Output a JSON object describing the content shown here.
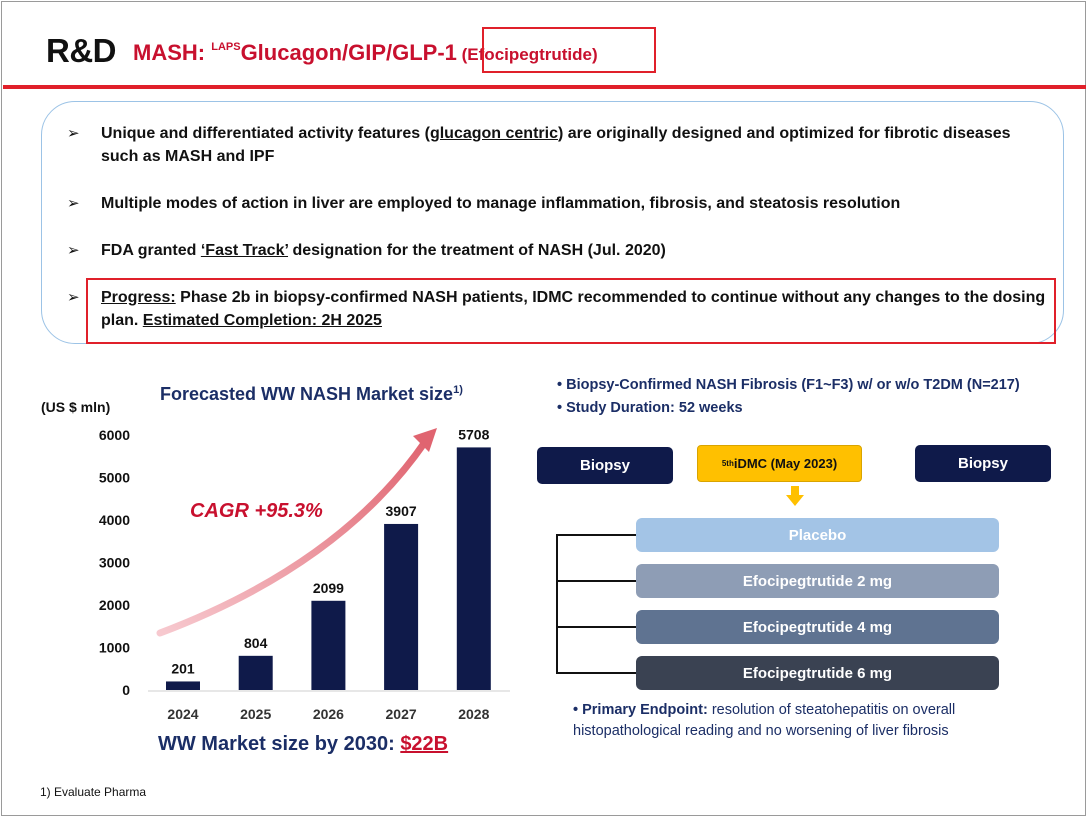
{
  "header": {
    "prefix": "R&D",
    "title_main": "MASH: ",
    "title_sup": "LAPS",
    "title_drug": "Glucagon/GIP/GLP-1",
    "title_paren": " (Efocipegtrutide)"
  },
  "bullets": {
    "b1_a": "Unique and differentiated activity features (",
    "b1_u": "glucagon centric",
    "b1_b": ") are originally designed and optimized for fibrotic diseases such as MASH and IPF",
    "b2": "Multiple modes of action in liver are employed to manage inflammation, fibrosis, and steatosis resolution",
    "b3_a": "FDA granted ",
    "b3_u": "‘Fast Track’",
    "b3_b": " designation for the treatment of NASH (Jul. 2020)",
    "b4_u1": "Progress:",
    "b4_a": " Phase 2b in biopsy-confirmed NASH patients, IDMC recommended to continue without any changes to the dosing plan. ",
    "b4_u2": "Estimated Completion: 2H 2025",
    "arrow": "➢"
  },
  "chart_data": {
    "type": "bar",
    "title": "Forecasted WW NASH Market size",
    "title_sup": "1)",
    "ylabel": "(US $ mln)",
    "categories": [
      "2024",
      "2025",
      "2026",
      "2027",
      "2028"
    ],
    "values": [
      201,
      804,
      2099,
      3907,
      5708
    ],
    "yticks": [
      "6000",
      "5000",
      "4000",
      "3000",
      "2000",
      "1000",
      "0"
    ],
    "ylim": [
      0,
      6000
    ],
    "bar_color": "#0f1a4a",
    "annotation": "CAGR +95.3%",
    "annotation_color": "#c8102e",
    "grid": false
  },
  "market": {
    "label": "WW Market size by 2030: ",
    "value": "$22B"
  },
  "footnote": "1) Evaluate Pharma",
  "study": {
    "line1": "• Biopsy-Confirmed NASH Fibrosis (F1~F3) w/ or w/o T2DM (N=217)",
    "line2": "• Study Duration: 52 weeks",
    "biopsy_left": "Biopsy",
    "biopsy_right": "Biopsy",
    "idmc_sup": "5th",
    "idmc_text": " iDMC (May 2023)",
    "arms": [
      "Placebo",
      "Efocipegtrutide 2 mg",
      "Efocipegtrutide 4 mg",
      "Efocipegtrutide 6 mg"
    ],
    "arm_colors": [
      "#a3c4e6",
      "#8e9db5",
      "#5f7391",
      "#3a4252"
    ],
    "endpoint_label": "• Primary Endpoint:",
    "endpoint_text": " resolution of steatohepatitis on overall histopathological reading and no worsening of liver fibrosis"
  }
}
